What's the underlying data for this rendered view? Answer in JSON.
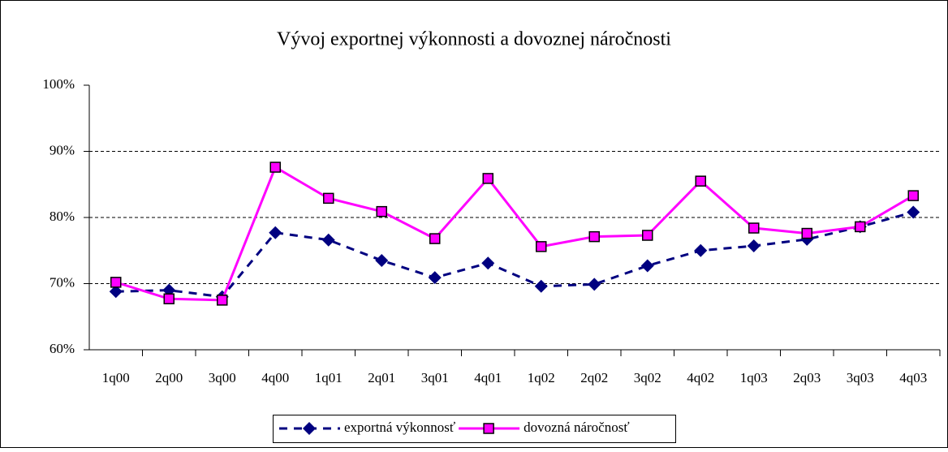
{
  "chart_data": {
    "type": "line",
    "title": "Vývoj exportnej výkonnosti a dovoznej náročnosti",
    "categories": [
      "1q00",
      "2q00",
      "3q00",
      "4q00",
      "1q01",
      "2q01",
      "3q01",
      "4q01",
      "1q02",
      "2q02",
      "3q02",
      "4q02",
      "1q03",
      "2q03",
      "3q03",
      "4q03"
    ],
    "series": [
      {
        "name": "exportná výkonnosť",
        "color": "#000080",
        "dash": true,
        "marker": "diamond",
        "values": [
          68.8,
          69.0,
          68.0,
          77.7,
          76.6,
          73.5,
          70.9,
          73.1,
          69.6,
          69.9,
          72.7,
          75.0,
          75.7,
          76.7,
          78.6,
          80.8
        ]
      },
      {
        "name": "dovozná náročnosť",
        "color": "#ff00ff",
        "dash": false,
        "marker": "square",
        "values": [
          70.2,
          67.7,
          67.5,
          87.6,
          82.9,
          80.9,
          76.8,
          85.9,
          75.6,
          77.1,
          77.3,
          85.5,
          78.4,
          77.6,
          78.6,
          83.3
        ]
      }
    ],
    "ylim": [
      60,
      100
    ],
    "yticks": [
      {
        "value": 60,
        "label": "60%"
      },
      {
        "value": 70,
        "label": "70%"
      },
      {
        "value": 80,
        "label": "80%"
      },
      {
        "value": 90,
        "label": "90%"
      },
      {
        "value": 100,
        "label": "100%"
      }
    ],
    "grid": true,
    "legend": "bottom"
  }
}
